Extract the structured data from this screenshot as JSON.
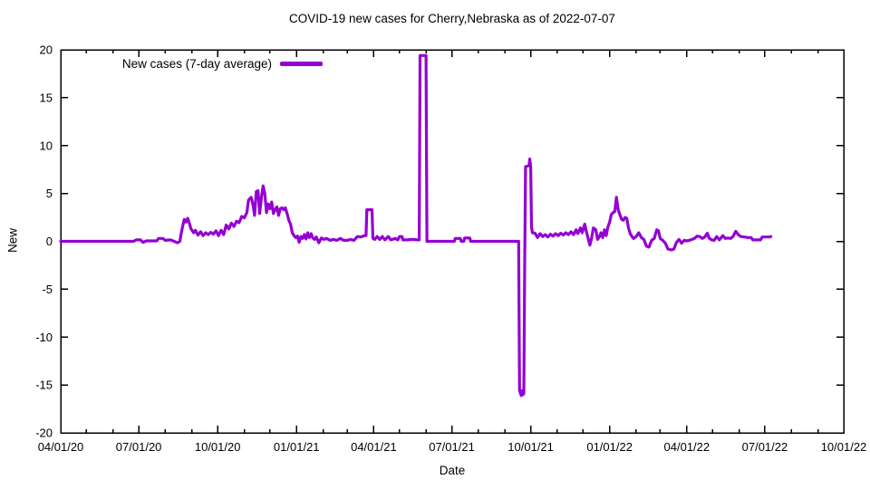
{
  "chart_data": {
    "type": "line",
    "title": "COVID-19 new cases for Cherry,Nebraska as of 2022-07-07",
    "xlabel": "Date",
    "ylabel": "New",
    "legend_label": "New cases (7-day average)",
    "legend_position": "top-left-inside",
    "grid": false,
    "line_color": "#9400D3",
    "axis_color": "#000000",
    "background_color": "#ffffff",
    "ylim": [
      -20,
      20
    ],
    "y_ticks": [
      -20,
      -15,
      -10,
      -5,
      0,
      5,
      10,
      15,
      20
    ],
    "x_axis_start_date": "2020-04-01",
    "x_axis_end_date": "2022-10-01",
    "x_axis_total_days": 913,
    "x_ticks": [
      {
        "label": "04/01/20",
        "day": 0
      },
      {
        "label": "07/01/20",
        "day": 91
      },
      {
        "label": "10/01/20",
        "day": 183
      },
      {
        "label": "01/01/21",
        "day": 275
      },
      {
        "label": "04/01/21",
        "day": 365
      },
      {
        "label": "07/01/21",
        "day": 456
      },
      {
        "label": "10/01/21",
        "day": 548
      },
      {
        "label": "01/01/22",
        "day": 640
      },
      {
        "label": "04/01/22",
        "day": 730
      },
      {
        "label": "07/01/22",
        "day": 821
      },
      {
        "label": "10/01/22",
        "day": 913
      }
    ],
    "minor_tick_days": [
      30,
      61,
      122,
      153,
      214,
      244,
      306,
      334,
      395,
      426,
      487,
      518,
      579,
      609,
      671,
      699,
      760,
      791,
      852,
      883
    ],
    "series": [
      {
        "name": "New cases (7-day average)",
        "points": [
          [
            0,
            0
          ],
          [
            85,
            0
          ],
          [
            88,
            0.15
          ],
          [
            93,
            0.15
          ],
          [
            96,
            -0.1
          ],
          [
            100,
            0.05
          ],
          [
            112,
            0.05
          ],
          [
            114,
            0.3
          ],
          [
            119,
            0.3
          ],
          [
            122,
            0.1
          ],
          [
            128,
            0.15
          ],
          [
            131,
            0.05
          ],
          [
            136,
            -0.15
          ],
          [
            139,
            0
          ],
          [
            140,
            0.6
          ],
          [
            142,
            1.5
          ],
          [
            144,
            2.3
          ],
          [
            146,
            2.0
          ],
          [
            148,
            2.4
          ],
          [
            150,
            1.9
          ],
          [
            152,
            1.3
          ],
          [
            155,
            0.9
          ],
          [
            157,
            1.15
          ],
          [
            160,
            0.65
          ],
          [
            163,
            1.0
          ],
          [
            166,
            0.6
          ],
          [
            169,
            0.9
          ],
          [
            172,
            0.7
          ],
          [
            175,
            0.95
          ],
          [
            178,
            0.75
          ],
          [
            181,
            1.1
          ],
          [
            184,
            0.6
          ],
          [
            187,
            1.15
          ],
          [
            190,
            0.7
          ],
          [
            193,
            1.7
          ],
          [
            196,
            1.3
          ],
          [
            199,
            1.9
          ],
          [
            202,
            1.55
          ],
          [
            205,
            2.1
          ],
          [
            208,
            1.95
          ],
          [
            211,
            2.6
          ],
          [
            214,
            2.45
          ],
          [
            217,
            3.0
          ],
          [
            219,
            4.3
          ],
          [
            222,
            4.6
          ],
          [
            224,
            3.9
          ],
          [
            226,
            2.7
          ],
          [
            228,
            5.2
          ],
          [
            230,
            5.3
          ],
          [
            232,
            2.9
          ],
          [
            234,
            4.5
          ],
          [
            236,
            5.8
          ],
          [
            238,
            5.0
          ],
          [
            240,
            3.0
          ],
          [
            242,
            3.9
          ],
          [
            244,
            3.4
          ],
          [
            246,
            4.1
          ],
          [
            248,
            2.9
          ],
          [
            250,
            3.3
          ],
          [
            252,
            3.6
          ],
          [
            254,
            2.7
          ],
          [
            256,
            3.4
          ],
          [
            258,
            3.5
          ],
          [
            260,
            3.3
          ],
          [
            262,
            3.5
          ],
          [
            264,
            2.9
          ],
          [
            266,
            2.2
          ],
          [
            268,
            1.8
          ],
          [
            270,
            0.9
          ],
          [
            272,
            0.6
          ],
          [
            274,
            0.4
          ],
          [
            276,
            0.55
          ],
          [
            278,
            -0.1
          ],
          [
            280,
            0.5
          ],
          [
            282,
            0.3
          ],
          [
            284,
            0.7
          ],
          [
            286,
            0.25
          ],
          [
            288,
            0.9
          ],
          [
            290,
            0.4
          ],
          [
            292,
            0.8
          ],
          [
            294,
            0.35
          ],
          [
            296,
            0.2
          ],
          [
            298,
            0.45
          ],
          [
            301,
            -0.15
          ],
          [
            304,
            0.35
          ],
          [
            307,
            0.2
          ],
          [
            310,
            0.3
          ],
          [
            314,
            0.1
          ],
          [
            318,
            0.2
          ],
          [
            322,
            0.1
          ],
          [
            326,
            0.3
          ],
          [
            330,
            0.1
          ],
          [
            334,
            0.1
          ],
          [
            338,
            0.2
          ],
          [
            342,
            0.1
          ],
          [
            346,
            0.5
          ],
          [
            350,
            0.45
          ],
          [
            354,
            0.6
          ],
          [
            356,
            0.6
          ],
          [
            357,
            3.3
          ],
          [
            363,
            3.3
          ],
          [
            364,
            0.3
          ],
          [
            366,
            0.2
          ],
          [
            369,
            0.5
          ],
          [
            372,
            0.2
          ],
          [
            375,
            0.5
          ],
          [
            378,
            0.15
          ],
          [
            382,
            0.5
          ],
          [
            385,
            0.15
          ],
          [
            390,
            0.3
          ],
          [
            393,
            0.15
          ],
          [
            395,
            0.5
          ],
          [
            398,
            0.5
          ],
          [
            399,
            0.15
          ],
          [
            404,
            0.15
          ],
          [
            410,
            0.2
          ],
          [
            416,
            0.15
          ],
          [
            418,
            0.15
          ],
          [
            419,
            19.4
          ],
          [
            426,
            19.4
          ],
          [
            427,
            0
          ],
          [
            440,
            0
          ],
          [
            459,
            0
          ],
          [
            460,
            0.3
          ],
          [
            466,
            0.3
          ],
          [
            467,
            0
          ],
          [
            470,
            0
          ],
          [
            471,
            0.35
          ],
          [
            477,
            0.35
          ],
          [
            478,
            0
          ],
          [
            534,
            0
          ],
          [
            535,
            -15.6
          ],
          [
            537,
            -16.1
          ],
          [
            538,
            -15.6
          ],
          [
            539,
            -16.0
          ],
          [
            540,
            -15.9
          ],
          [
            541,
            -2.0
          ],
          [
            542,
            7.8
          ],
          [
            546,
            7.9
          ],
          [
            547,
            8.6
          ],
          [
            548,
            7.8
          ],
          [
            549,
            1.5
          ],
          [
            550,
            0.9
          ],
          [
            553,
            0.85
          ],
          [
            556,
            0.4
          ],
          [
            559,
            0.8
          ],
          [
            562,
            0.5
          ],
          [
            565,
            0.7
          ],
          [
            568,
            0.45
          ],
          [
            571,
            0.75
          ],
          [
            574,
            0.55
          ],
          [
            577,
            0.8
          ],
          [
            580,
            0.6
          ],
          [
            583,
            0.85
          ],
          [
            586,
            0.65
          ],
          [
            589,
            0.9
          ],
          [
            592,
            0.7
          ],
          [
            595,
            1.0
          ],
          [
            598,
            0.7
          ],
          [
            601,
            1.2
          ],
          [
            603,
            0.8
          ],
          [
            606,
            1.4
          ],
          [
            608,
            0.9
          ],
          [
            611,
            1.8
          ],
          [
            613,
            1.0
          ],
          [
            615,
            0.3
          ],
          [
            617,
            -0.4
          ],
          [
            619,
            0.3
          ],
          [
            621,
            1.4
          ],
          [
            624,
            1.2
          ],
          [
            626,
            0.2
          ],
          [
            628,
            0.45
          ],
          [
            630,
            0.9
          ],
          [
            632,
            0.4
          ],
          [
            634,
            1.2
          ],
          [
            636,
            0.6
          ],
          [
            638,
            1.5
          ],
          [
            640,
            2.0
          ],
          [
            642,
            2.8
          ],
          [
            644,
            3.0
          ],
          [
            646,
            3.1
          ],
          [
            648,
            4.6
          ],
          [
            650,
            3.3
          ],
          [
            652,
            2.8
          ],
          [
            654,
            2.3
          ],
          [
            656,
            2.2
          ],
          [
            658,
            2.5
          ],
          [
            660,
            2.4
          ],
          [
            662,
            1.4
          ],
          [
            664,
            0.8
          ],
          [
            666,
            0.5
          ],
          [
            668,
            0.3
          ],
          [
            671,
            0.5
          ],
          [
            674,
            0.9
          ],
          [
            677,
            0.4
          ],
          [
            680,
            0.2
          ],
          [
            683,
            -0.5
          ],
          [
            686,
            -0.6
          ],
          [
            689,
            0.1
          ],
          [
            692,
            0.3
          ],
          [
            695,
            1.2
          ],
          [
            697,
            1.1
          ],
          [
            699,
            0.3
          ],
          [
            702,
            0.1
          ],
          [
            705,
            -0.2
          ],
          [
            708,
            -0.8
          ],
          [
            712,
            -0.9
          ],
          [
            715,
            -0.8
          ],
          [
            718,
            -0.1
          ],
          [
            721,
            0.2
          ],
          [
            724,
            -0.2
          ],
          [
            727,
            0.1
          ],
          [
            730,
            0.05
          ],
          [
            733,
            0.1
          ],
          [
            736,
            0.2
          ],
          [
            739,
            0.3
          ],
          [
            742,
            0.55
          ],
          [
            745,
            0.5
          ],
          [
            748,
            0.3
          ],
          [
            751,
            0.45
          ],
          [
            754,
            0.85
          ],
          [
            756,
            0.35
          ],
          [
            759,
            0.15
          ],
          [
            762,
            0.1
          ],
          [
            765,
            0.5
          ],
          [
            768,
            0.15
          ],
          [
            772,
            0.6
          ],
          [
            775,
            0.3
          ],
          [
            778,
            0.35
          ],
          [
            781,
            0.3
          ],
          [
            784,
            0.5
          ],
          [
            787,
            1.05
          ],
          [
            790,
            0.7
          ],
          [
            793,
            0.5
          ],
          [
            797,
            0.45
          ],
          [
            801,
            0.4
          ],
          [
            805,
            0.4
          ],
          [
            807,
            0.15
          ],
          [
            812,
            0.15
          ],
          [
            816,
            0.15
          ],
          [
            818,
            0.45
          ],
          [
            823,
            0.45
          ],
          [
            827,
            0.45
          ],
          [
            828,
            0.5
          ]
        ]
      }
    ]
  }
}
